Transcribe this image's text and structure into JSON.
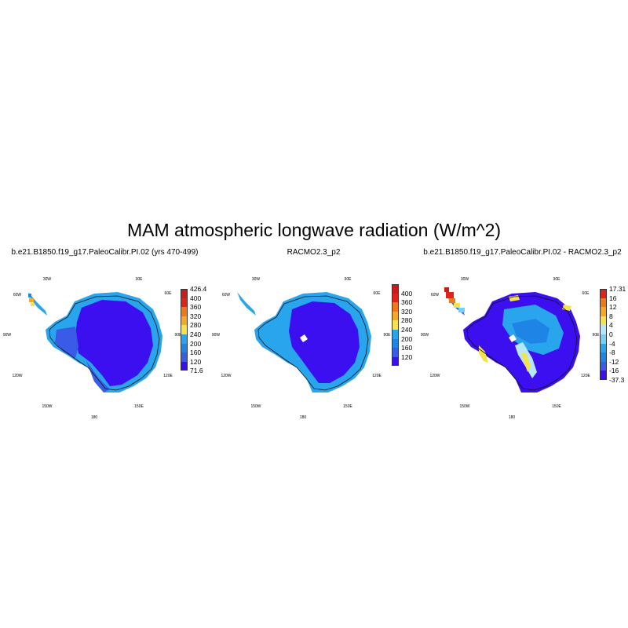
{
  "title": "MAM atmospheric longwave radiation (W/m^2)",
  "colors": {
    "deep_blue": "#3b0ff0",
    "royal_blue": "#3a5ae8",
    "mid_blue": "#1e84e6",
    "light_blue": "#29a5ee",
    "pale_blue": "#78cff4",
    "very_pale_blue": "#b6e6f8",
    "yellow": "#f6e24a",
    "gold": "#f5a824",
    "orange": "#ec7a17",
    "red": "#e0221c",
    "dark_red": "#c81d1d"
  },
  "panels": [
    {
      "title": "b.e21.B1850.f19_g17.PaleoCalibr.PI.02 (yrs 470-499)",
      "lon_labels": [
        "30W",
        "30E",
        "60W",
        "60E",
        "90W",
        "90E",
        "120W",
        "120E",
        "150W",
        "150E",
        "180"
      ],
      "colorbar": {
        "labels": [
          "426.4",
          "400",
          "360",
          "320",
          "280",
          "240",
          "200",
          "160",
          "120",
          "71.6"
        ],
        "colors": [
          "#c81d1d",
          "#e0221c",
          "#ec7a17",
          "#f5a824",
          "#f6e24a",
          "#29a5ee",
          "#1e84e6",
          "#3a5ae8",
          "#3b0ff0"
        ]
      }
    },
    {
      "title": "RACMO2.3_p2",
      "lon_labels": [
        "30W",
        "30E",
        "60W",
        "60E",
        "90W",
        "90E",
        "120W",
        "120E",
        "150W",
        "150E",
        "180"
      ],
      "colorbar": {
        "labels": [
          "400",
          "360",
          "320",
          "280",
          "240",
          "200",
          "160",
          "120"
        ],
        "colors": [
          "#c81d1d",
          "#e0221c",
          "#ec7a17",
          "#f5a824",
          "#f6e24a",
          "#29a5ee",
          "#1e84e6",
          "#3a5ae8",
          "#3b0ff0"
        ]
      }
    },
    {
      "title": "b.e21.B1850.f19_g17.PaleoCalibr.PI.02 - RACMO2.3_p2",
      "lon_labels": [
        "30W",
        "30E",
        "60W",
        "60E",
        "90W",
        "90E",
        "120W",
        "120E",
        "150W",
        "150E",
        "180"
      ],
      "colorbar": {
        "labels": [
          "17.31",
          "16",
          "12",
          "8",
          "4",
          "0",
          "-4",
          "-8",
          "-12",
          "-16",
          "-37.3"
        ],
        "colors": [
          "#e0221c",
          "#ec7a17",
          "#f5a824",
          "#f6e24a",
          "#b6e6f8",
          "#78cff4",
          "#29a5ee",
          "#1e84e6",
          "#3a5ae8",
          "#3b0ff0"
        ]
      }
    }
  ]
}
